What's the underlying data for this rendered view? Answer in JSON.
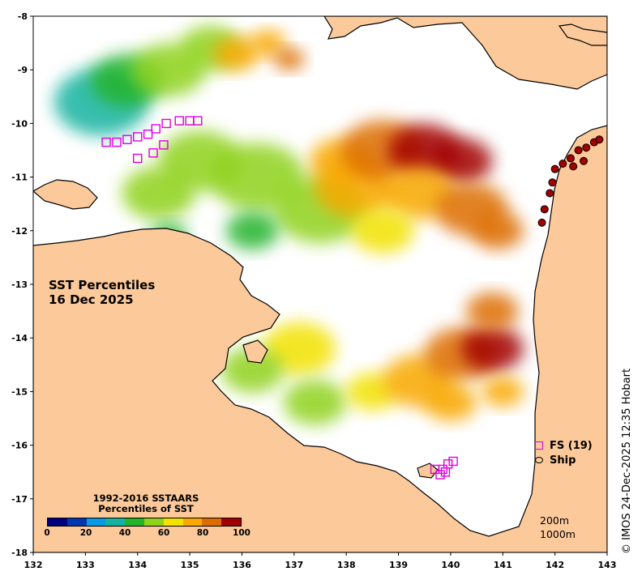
{
  "map": {
    "lon_range": [
      132,
      143
    ],
    "lat_range": [
      -18,
      -8
    ],
    "x_ticks": [
      "132",
      "133",
      "134",
      "135",
      "136",
      "137",
      "138",
      "139",
      "140",
      "141",
      "142",
      "143"
    ],
    "y_ticks": [
      "-8",
      "-9",
      "-10",
      "-11",
      "-12",
      "-13",
      "-14",
      "-15",
      "-16",
      "-17",
      "-18"
    ],
    "land_color": "#fcc99b",
    "coast_color": "#000000",
    "no_data_color": "#ffffff"
  },
  "title": {
    "line1": "SST Percentiles",
    "line2": "16 Dec 2025"
  },
  "legend": {
    "line1": "1992-2016 SSTAARS",
    "line2": "Percentiles of SST",
    "colors": [
      "#00007f",
      "#0036b0",
      "#0a9ae4",
      "#13b3a0",
      "#22b32a",
      "#8fd21a",
      "#f2e200",
      "#f8a800",
      "#dd6d00",
      "#a20000"
    ],
    "ticks": [
      "0",
      "20",
      "40",
      "60",
      "80",
      "100"
    ]
  },
  "key": {
    "fs_label": "FS (19)",
    "ship_label": "Ship",
    "fs_color": "#e000e0"
  },
  "scale": {
    "line1": "200m",
    "line2": "1000m"
  },
  "credit": "© IMOS 24-Dec-2025 12:35 Hobart",
  "fs_points": [
    [
      133.4,
      -10.35
    ],
    [
      133.6,
      -10.35
    ],
    [
      133.8,
      -10.3
    ],
    [
      134.0,
      -10.25
    ],
    [
      134.2,
      -10.2
    ],
    [
      134.35,
      -10.1
    ],
    [
      134.55,
      -10.0
    ],
    [
      134.8,
      -9.95
    ],
    [
      135.0,
      -9.95
    ],
    [
      135.15,
      -9.95
    ],
    [
      134.0,
      -10.65
    ],
    [
      134.3,
      -10.55
    ],
    [
      134.5,
      -10.4
    ],
    [
      139.7,
      -16.45
    ],
    [
      139.85,
      -16.45
    ],
    [
      139.9,
      -16.5
    ],
    [
      139.95,
      -16.35
    ],
    [
      140.05,
      -16.3
    ],
    [
      139.8,
      -16.55
    ]
  ],
  "ship_points": [
    [
      142.15,
      -10.75
    ],
    [
      142.3,
      -10.65
    ],
    [
      142.45,
      -10.5
    ],
    [
      142.6,
      -10.45
    ],
    [
      142.75,
      -10.35
    ],
    [
      142.85,
      -10.3
    ],
    [
      142.0,
      -10.85
    ],
    [
      141.95,
      -11.1
    ],
    [
      141.9,
      -11.3
    ],
    [
      141.8,
      -11.6
    ],
    [
      141.75,
      -11.85
    ],
    [
      142.35,
      -10.8
    ],
    [
      142.55,
      -10.7
    ]
  ],
  "sst_blobs": [
    {
      "lon": 133.3,
      "lat": -9.6,
      "r": 0.9,
      "p": 30
    },
    {
      "lon": 133.8,
      "lat": -9.2,
      "r": 0.7,
      "p": 40
    },
    {
      "lon": 134.6,
      "lat": -9.0,
      "r": 0.7,
      "p": 50
    },
    {
      "lon": 135.4,
      "lat": -8.6,
      "r": 0.6,
      "p": 55
    },
    {
      "lon": 135.9,
      "lat": -8.7,
      "r": 0.45,
      "p": 72
    },
    {
      "lon": 136.5,
      "lat": -8.5,
      "r": 0.35,
      "p": 78
    },
    {
      "lon": 136.9,
      "lat": -8.8,
      "r": 0.3,
      "p": 82
    },
    {
      "lon": 134.4,
      "lat": -11.3,
      "r": 0.7,
      "p": 50
    },
    {
      "lon": 135.2,
      "lat": -10.7,
      "r": 0.8,
      "p": 55
    },
    {
      "lon": 136.3,
      "lat": -11.0,
      "r": 0.9,
      "p": 52
    },
    {
      "lon": 137.5,
      "lat": -11.6,
      "r": 0.9,
      "p": 58
    },
    {
      "lon": 138.2,
      "lat": -11.2,
      "r": 0.8,
      "p": 72
    },
    {
      "lon": 137.9,
      "lat": -10.7,
      "r": 0.6,
      "p": 78
    },
    {
      "lon": 138.7,
      "lat": -10.5,
      "r": 0.8,
      "p": 84
    },
    {
      "lon": 139.5,
      "lat": -10.5,
      "r": 0.7,
      "p": 90
    },
    {
      "lon": 140.2,
      "lat": -10.7,
      "r": 0.6,
      "p": 94
    },
    {
      "lon": 139.4,
      "lat": -11.3,
      "r": 0.7,
      "p": 78
    },
    {
      "lon": 140.4,
      "lat": -11.6,
      "r": 0.7,
      "p": 80
    },
    {
      "lon": 140.9,
      "lat": -12.0,
      "r": 0.5,
      "p": 85
    },
    {
      "lon": 138.7,
      "lat": -12.0,
      "r": 0.6,
      "p": 62
    },
    {
      "lon": 136.2,
      "lat": -12.0,
      "r": 0.5,
      "p": 48
    },
    {
      "lon": 134.6,
      "lat": -12.1,
      "r": 0.35,
      "p": 42
    },
    {
      "lon": 137.1,
      "lat": -14.2,
      "r": 0.7,
      "p": 68
    },
    {
      "lon": 136.2,
      "lat": -14.6,
      "r": 0.6,
      "p": 58
    },
    {
      "lon": 137.4,
      "lat": -15.2,
      "r": 0.6,
      "p": 55
    },
    {
      "lon": 138.5,
      "lat": -15.0,
      "r": 0.5,
      "p": 60
    },
    {
      "lon": 139.4,
      "lat": -14.8,
      "r": 0.7,
      "p": 72
    },
    {
      "lon": 140.2,
      "lat": -14.3,
      "r": 0.7,
      "p": 82
    },
    {
      "lon": 140.8,
      "lat": -14.2,
      "r": 0.6,
      "p": 92
    },
    {
      "lon": 140.8,
      "lat": -13.5,
      "r": 0.5,
      "p": 84
    },
    {
      "lon": 140.0,
      "lat": -15.2,
      "r": 0.5,
      "p": 70
    },
    {
      "lon": 141.0,
      "lat": -15.0,
      "r": 0.4,
      "p": 78
    }
  ]
}
